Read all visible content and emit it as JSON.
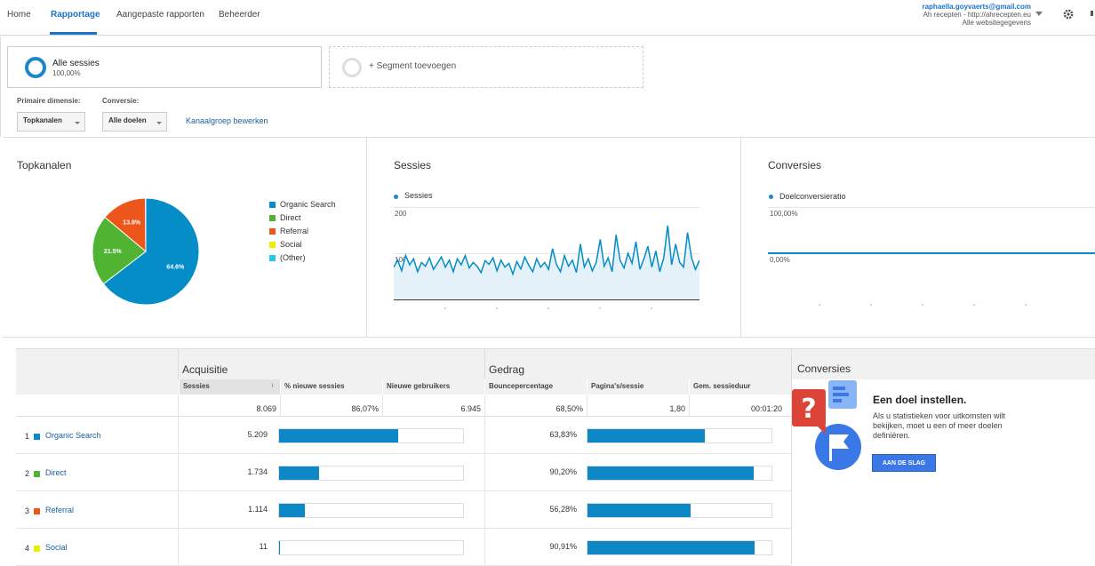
{
  "nav": {
    "tabs": [
      "Home",
      "Rapportage",
      "Aangepaste rapporten",
      "Beheerder"
    ],
    "account_email": "raphaella.goyvaerts@gmail.com",
    "account_property": "Ah recepten - http://ahrecepten.eu",
    "account_view": "Alle websitegegevens"
  },
  "segments": {
    "active_name": "Alle sessies",
    "active_pct": "100,00%",
    "add_label": "+ Segment toevoegen"
  },
  "controls": {
    "primary_dim_label": "Primaire dimensie:",
    "primary_dim_value": "Topkanalen",
    "conversion_label": "Conversie:",
    "conversion_value": "Alle doelen",
    "edit_link": "Kanaalgroep bewerken"
  },
  "colors": {
    "organic": "#058dc7",
    "direct": "#50b432",
    "referral": "#ed561b",
    "social": "#edef00",
    "other": "#24cbe5",
    "bar": "#0e87c6",
    "link": "#1a5e9c"
  },
  "panels": {
    "pie_title": "Topkanalen",
    "sessions_title": "Sessies",
    "conversions_title": "Conversies"
  },
  "chart_data": [
    {
      "type": "pie",
      "title": "",
      "legend": "right",
      "slices": [
        {
          "label": "Organic Search",
          "value": 64.6,
          "display": "64.6%",
          "color": "#058dc7"
        },
        {
          "label": "Direct",
          "value": 21.5,
          "display": "21.5%",
          "color": "#50b432"
        },
        {
          "label": "Referral",
          "value": 13.8,
          "display": "13.8%",
          "color": "#ed561b"
        },
        {
          "label": "Social",
          "value": 0.1,
          "display": "",
          "color": "#edef00"
        },
        {
          "label": "(Other)",
          "value": 0.0,
          "display": "",
          "color": "#24cbe5"
        }
      ]
    },
    {
      "type": "area",
      "series": [
        {
          "name": "Sessies",
          "values": [
            70,
            85,
            62,
            95,
            75,
            88,
            60,
            80,
            72,
            90,
            65,
            78,
            92,
            70,
            85,
            60,
            88,
            75,
            95,
            68,
            80,
            72,
            58,
            84,
            76,
            90,
            62,
            85,
            70,
            78,
            55,
            82,
            66,
            92,
            74,
            60,
            88,
            70,
            80,
            65,
            110,
            75,
            60,
            95,
            72,
            85,
            58,
            120,
            70,
            88,
            62,
            80,
            130,
            72,
            90,
            60,
            140,
            85,
            68,
            100,
            78,
            125,
            65,
            88,
            115,
            70,
            105,
            60,
            90,
            160,
            75,
            120,
            80,
            70,
            145,
            90,
            65,
            85
          ]
        }
      ],
      "yticks": [
        "200",
        "100"
      ],
      "ylim": [
        0,
        200
      ]
    },
    {
      "type": "line",
      "series": [
        {
          "name": "Doelconversieratio",
          "values": [
            0,
            0,
            0,
            0,
            0,
            0,
            0,
            0,
            0,
            0,
            0,
            0
          ]
        }
      ],
      "yticks": [
        "100,00%",
        "0,00%"
      ],
      "ylim": [
        0,
        100
      ]
    }
  ],
  "table": {
    "groups": [
      "Acquisitie",
      "Gedrag"
    ],
    "columns": [
      "Sessies",
      "% nieuwe sessies",
      "Nieuwe gebruikers",
      "Bouncepercentage",
      "Pagina's/sessie",
      "Gem. sessieduur"
    ],
    "totals": [
      "8.069",
      "86,07%",
      "6.945",
      "68,50%",
      "1,80",
      "00:01:20"
    ],
    "rows": [
      {
        "num": "1",
        "label": "Organic Search",
        "sessions": "5.209",
        "sessions_share": 64.6,
        "bounce": "63,83%",
        "bounce_share": 63.83,
        "color": "#058dc7"
      },
      {
        "num": "2",
        "label": "Direct",
        "sessions": "1.734",
        "sessions_share": 21.5,
        "bounce": "90,20%",
        "bounce_share": 90.2,
        "color": "#50b432"
      },
      {
        "num": "3",
        "label": "Referral",
        "sessions": "1.114",
        "sessions_share": 13.8,
        "bounce": "56,28%",
        "bounce_share": 56.28,
        "color": "#ed561b"
      },
      {
        "num": "4",
        "label": "Social",
        "sessions": "11",
        "sessions_share": 0.14,
        "bounce": "90,91%",
        "bounce_share": 90.91,
        "color": "#edef00"
      }
    ]
  },
  "conversions_panel": {
    "title": "Conversies",
    "goal_title": "Een doel instellen.",
    "goal_text": "Als u statistieken voor uitkomsten wilt bekijken, moet u een of meer doelen definiëren.",
    "button": "AAN DE SLAG"
  }
}
